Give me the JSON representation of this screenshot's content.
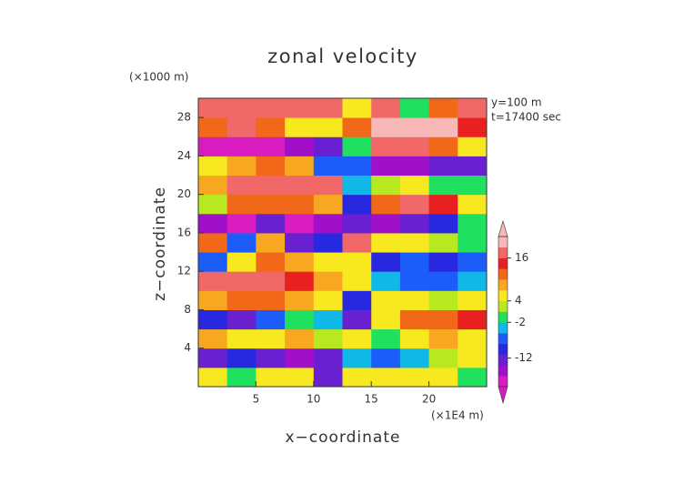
{
  "chart_data": {
    "type": "heatmap",
    "title": "zonal velocity",
    "xlabel": "x−coordinate",
    "ylabel": "z−coordinate",
    "xunit": "(×1E4 m)",
    "yunit": "(×1000 m)",
    "annotations": [
      "y=100 m",
      "t=17400 sec"
    ],
    "xlim": [
      0,
      25
    ],
    "xticks": [
      5,
      10,
      15,
      20
    ],
    "ylim": [
      0,
      30
    ],
    "yticks": [
      4,
      8,
      12,
      16,
      20,
      24,
      28
    ],
    "xbins": [
      0,
      2.5,
      5,
      7.5,
      10,
      12.5,
      15,
      17.5,
      20,
      22.5,
      25
    ],
    "ybins": [
      0,
      2,
      4,
      6,
      8,
      10,
      12,
      14,
      16,
      18,
      20,
      22,
      24,
      26,
      28,
      30
    ],
    "z": [
      [
        4,
        -2,
        4,
        6,
        -12,
        6,
        4,
        6,
        4,
        0
      ],
      [
        -12,
        -10,
        -14,
        -16,
        -12,
        -4,
        -6,
        -4,
        2,
        4
      ],
      [
        8,
        4,
        6,
        8,
        2,
        6,
        0,
        6,
        8,
        6
      ],
      [
        -10,
        -12,
        -6,
        -2,
        -4,
        -14,
        4,
        10,
        12,
        14
      ],
      [
        8,
        10,
        10,
        8,
        6,
        -10,
        4,
        6,
        2,
        4
      ],
      [
        18,
        18,
        16,
        14,
        8,
        6,
        -4,
        -6,
        -8,
        -4
      ],
      [
        -8,
        6,
        10,
        8,
        6,
        4,
        -10,
        -8,
        -10,
        -6
      ],
      [
        10,
        -6,
        8,
        -12,
        -10,
        16,
        6,
        4,
        2,
        -2
      ],
      [
        -16,
        -18,
        -14,
        -18,
        -16,
        -12,
        -16,
        -12,
        -10,
        0
      ],
      [
        2,
        10,
        12,
        10,
        8,
        -10,
        12,
        16,
        14,
        6
      ],
      [
        8,
        18,
        18,
        18,
        16,
        -4,
        2,
        4,
        0,
        -2
      ],
      [
        4,
        8,
        10,
        8,
        -8,
        -6,
        -16,
        -16,
        -14,
        -12
      ],
      [
        -18,
        -18,
        -18,
        -16,
        -14,
        0,
        16,
        18,
        12,
        4
      ],
      [
        10,
        16,
        12,
        6,
        4,
        10,
        20,
        20,
        20,
        14
      ],
      [
        18,
        18,
        18,
        18,
        16,
        6,
        16,
        0,
        10,
        18
      ]
    ],
    "clim": [
      -20,
      22
    ],
    "cticks": [
      -12,
      -2,
      4,
      16
    ],
    "colors": [
      "#d81cc0",
      "#a010c8",
      "#6820d0",
      "#2828e0",
      "#1c5cf8",
      "#10b8e8",
      "#20e060",
      "#b8e820",
      "#f8e820",
      "#f8a820",
      "#f06818",
      "#e82020",
      "#f06868",
      "#f8b8b8"
    ]
  }
}
